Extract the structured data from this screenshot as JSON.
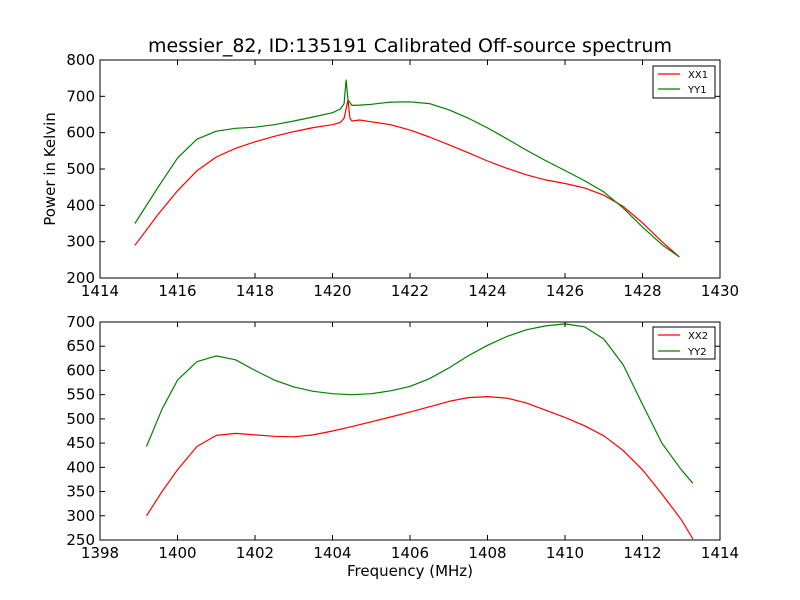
{
  "chart_data": [
    {
      "type": "line",
      "title": "messier_82, ID:135191 Calibrated Off-source spectrum",
      "xlabel": "",
      "ylabel": "Power in Kelvin",
      "xlim": [
        1414,
        1430
      ],
      "ylim": [
        200,
        800
      ],
      "xticks": [
        1414,
        1416,
        1418,
        1420,
        1422,
        1424,
        1426,
        1428,
        1430
      ],
      "yticks": [
        200,
        300,
        400,
        500,
        600,
        700,
        800
      ],
      "legend": "top-right",
      "grid": false,
      "series": [
        {
          "name": "XX1",
          "color": "#ff0000",
          "x": [
            1414.9,
            1415.5,
            1416.0,
            1416.5,
            1417.0,
            1417.5,
            1418.0,
            1418.5,
            1419.0,
            1419.5,
            1420.0,
            1420.2,
            1420.3,
            1420.4,
            1420.45,
            1420.5,
            1420.7,
            1421.0,
            1421.5,
            1422.0,
            1422.5,
            1423.0,
            1423.5,
            1424.0,
            1424.5,
            1425.0,
            1425.5,
            1426.0,
            1426.5,
            1427.0,
            1427.5,
            1428.0,
            1428.5,
            1428.95
          ],
          "values": [
            290,
            375,
            440,
            495,
            533,
            557,
            575,
            590,
            603,
            614,
            622,
            628,
            640,
            690,
            640,
            632,
            635,
            630,
            622,
            607,
            588,
            567,
            545,
            522,
            502,
            484,
            470,
            460,
            448,
            428,
            397,
            352,
            300,
            258
          ]
        },
        {
          "name": "YY1",
          "color": "#008000",
          "x": [
            1414.9,
            1415.5,
            1416.0,
            1416.5,
            1417.0,
            1417.5,
            1418.0,
            1418.5,
            1419.0,
            1419.5,
            1420.0,
            1420.2,
            1420.3,
            1420.35,
            1420.4,
            1420.5,
            1420.7,
            1421.0,
            1421.5,
            1422.0,
            1422.5,
            1423.0,
            1423.5,
            1424.0,
            1424.5,
            1425.0,
            1425.5,
            1426.0,
            1426.5,
            1427.0,
            1427.5,
            1428.0,
            1428.5,
            1428.95
          ],
          "values": [
            350,
            450,
            530,
            582,
            604,
            612,
            615,
            622,
            632,
            643,
            655,
            665,
            680,
            745,
            690,
            675,
            676,
            678,
            684,
            685,
            680,
            663,
            640,
            613,
            583,
            552,
            523,
            496,
            468,
            437,
            393,
            340,
            292,
            258
          ]
        }
      ]
    },
    {
      "type": "line",
      "title": "",
      "xlabel": "Frequency (MHz)",
      "ylabel": "",
      "xlim": [
        1398,
        1414
      ],
      "ylim": [
        250,
        700
      ],
      "xticks": [
        1398,
        1400,
        1402,
        1404,
        1406,
        1408,
        1410,
        1412,
        1414
      ],
      "yticks": [
        250,
        300,
        350,
        400,
        450,
        500,
        550,
        600,
        650,
        700
      ],
      "legend": "top-right",
      "grid": false,
      "series": [
        {
          "name": "XX2",
          "color": "#ff0000",
          "x": [
            1399.2,
            1399.6,
            1400.0,
            1400.5,
            1401.0,
            1401.5,
            1402.0,
            1402.5,
            1403.0,
            1403.5,
            1404.0,
            1404.5,
            1405.0,
            1405.5,
            1406.0,
            1406.5,
            1407.0,
            1407.5,
            1408.0,
            1408.5,
            1409.0,
            1409.5,
            1410.0,
            1410.5,
            1411.0,
            1411.5,
            1412.0,
            1412.5,
            1413.0,
            1413.3
          ],
          "values": [
            300,
            350,
            395,
            443,
            466,
            470,
            467,
            464,
            463,
            467,
            475,
            484,
            494,
            504,
            514,
            525,
            536,
            544,
            546,
            543,
            533,
            518,
            503,
            486,
            465,
            435,
            395,
            345,
            292,
            252
          ]
        },
        {
          "name": "YY2",
          "color": "#008000",
          "x": [
            1399.2,
            1399.6,
            1400.0,
            1400.5,
            1401.0,
            1401.5,
            1402.0,
            1402.5,
            1403.0,
            1403.5,
            1404.0,
            1404.5,
            1405.0,
            1405.5,
            1406.0,
            1406.5,
            1407.0,
            1407.5,
            1408.0,
            1408.5,
            1409.0,
            1409.5,
            1410.0,
            1410.5,
            1411.0,
            1411.5,
            1412.0,
            1412.5,
            1413.0,
            1413.3
          ],
          "values": [
            443,
            520,
            580,
            618,
            630,
            622,
            600,
            580,
            566,
            557,
            552,
            550,
            552,
            558,
            567,
            583,
            605,
            630,
            652,
            670,
            684,
            692,
            696,
            690,
            665,
            612,
            530,
            450,
            395,
            367
          ]
        }
      ]
    }
  ]
}
